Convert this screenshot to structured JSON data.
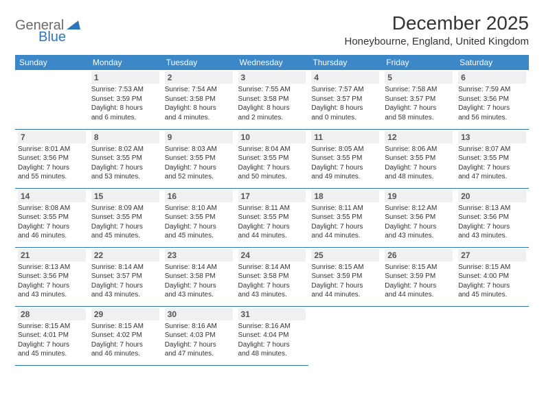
{
  "logo": {
    "word1": "General",
    "word2": "Blue"
  },
  "title": "December 2025",
  "location": "Honeybourne, England, United Kingdom",
  "colors": {
    "header_bg": "#3b87c8",
    "header_text": "#ffffff",
    "border": "#2d77b9",
    "daynum_bg": "#eef0f2",
    "logo_gray": "#6b6b6b",
    "logo_blue": "#2d77b9"
  },
  "weekdays": [
    "Sunday",
    "Monday",
    "Tuesday",
    "Wednesday",
    "Thursday",
    "Friday",
    "Saturday"
  ],
  "weeks": [
    [
      null,
      {
        "n": "1",
        "sr": "Sunrise: 7:53 AM",
        "ss": "Sunset: 3:59 PM",
        "d1": "Daylight: 8 hours",
        "d2": "and 6 minutes."
      },
      {
        "n": "2",
        "sr": "Sunrise: 7:54 AM",
        "ss": "Sunset: 3:58 PM",
        "d1": "Daylight: 8 hours",
        "d2": "and 4 minutes."
      },
      {
        "n": "3",
        "sr": "Sunrise: 7:55 AM",
        "ss": "Sunset: 3:58 PM",
        "d1": "Daylight: 8 hours",
        "d2": "and 2 minutes."
      },
      {
        "n": "4",
        "sr": "Sunrise: 7:57 AM",
        "ss": "Sunset: 3:57 PM",
        "d1": "Daylight: 8 hours",
        "d2": "and 0 minutes."
      },
      {
        "n": "5",
        "sr": "Sunrise: 7:58 AM",
        "ss": "Sunset: 3:57 PM",
        "d1": "Daylight: 7 hours",
        "d2": "and 58 minutes."
      },
      {
        "n": "6",
        "sr": "Sunrise: 7:59 AM",
        "ss": "Sunset: 3:56 PM",
        "d1": "Daylight: 7 hours",
        "d2": "and 56 minutes."
      }
    ],
    [
      {
        "n": "7",
        "sr": "Sunrise: 8:01 AM",
        "ss": "Sunset: 3:56 PM",
        "d1": "Daylight: 7 hours",
        "d2": "and 55 minutes."
      },
      {
        "n": "8",
        "sr": "Sunrise: 8:02 AM",
        "ss": "Sunset: 3:55 PM",
        "d1": "Daylight: 7 hours",
        "d2": "and 53 minutes."
      },
      {
        "n": "9",
        "sr": "Sunrise: 8:03 AM",
        "ss": "Sunset: 3:55 PM",
        "d1": "Daylight: 7 hours",
        "d2": "and 52 minutes."
      },
      {
        "n": "10",
        "sr": "Sunrise: 8:04 AM",
        "ss": "Sunset: 3:55 PM",
        "d1": "Daylight: 7 hours",
        "d2": "and 50 minutes."
      },
      {
        "n": "11",
        "sr": "Sunrise: 8:05 AM",
        "ss": "Sunset: 3:55 PM",
        "d1": "Daylight: 7 hours",
        "d2": "and 49 minutes."
      },
      {
        "n": "12",
        "sr": "Sunrise: 8:06 AM",
        "ss": "Sunset: 3:55 PM",
        "d1": "Daylight: 7 hours",
        "d2": "and 48 minutes."
      },
      {
        "n": "13",
        "sr": "Sunrise: 8:07 AM",
        "ss": "Sunset: 3:55 PM",
        "d1": "Daylight: 7 hours",
        "d2": "and 47 minutes."
      }
    ],
    [
      {
        "n": "14",
        "sr": "Sunrise: 8:08 AM",
        "ss": "Sunset: 3:55 PM",
        "d1": "Daylight: 7 hours",
        "d2": "and 46 minutes."
      },
      {
        "n": "15",
        "sr": "Sunrise: 8:09 AM",
        "ss": "Sunset: 3:55 PM",
        "d1": "Daylight: 7 hours",
        "d2": "and 45 minutes."
      },
      {
        "n": "16",
        "sr": "Sunrise: 8:10 AM",
        "ss": "Sunset: 3:55 PM",
        "d1": "Daylight: 7 hours",
        "d2": "and 45 minutes."
      },
      {
        "n": "17",
        "sr": "Sunrise: 8:11 AM",
        "ss": "Sunset: 3:55 PM",
        "d1": "Daylight: 7 hours",
        "d2": "and 44 minutes."
      },
      {
        "n": "18",
        "sr": "Sunrise: 8:11 AM",
        "ss": "Sunset: 3:55 PM",
        "d1": "Daylight: 7 hours",
        "d2": "and 44 minutes."
      },
      {
        "n": "19",
        "sr": "Sunrise: 8:12 AM",
        "ss": "Sunset: 3:56 PM",
        "d1": "Daylight: 7 hours",
        "d2": "and 43 minutes."
      },
      {
        "n": "20",
        "sr": "Sunrise: 8:13 AM",
        "ss": "Sunset: 3:56 PM",
        "d1": "Daylight: 7 hours",
        "d2": "and 43 minutes."
      }
    ],
    [
      {
        "n": "21",
        "sr": "Sunrise: 8:13 AM",
        "ss": "Sunset: 3:56 PM",
        "d1": "Daylight: 7 hours",
        "d2": "and 43 minutes."
      },
      {
        "n": "22",
        "sr": "Sunrise: 8:14 AM",
        "ss": "Sunset: 3:57 PM",
        "d1": "Daylight: 7 hours",
        "d2": "and 43 minutes."
      },
      {
        "n": "23",
        "sr": "Sunrise: 8:14 AM",
        "ss": "Sunset: 3:58 PM",
        "d1": "Daylight: 7 hours",
        "d2": "and 43 minutes."
      },
      {
        "n": "24",
        "sr": "Sunrise: 8:14 AM",
        "ss": "Sunset: 3:58 PM",
        "d1": "Daylight: 7 hours",
        "d2": "and 43 minutes."
      },
      {
        "n": "25",
        "sr": "Sunrise: 8:15 AM",
        "ss": "Sunset: 3:59 PM",
        "d1": "Daylight: 7 hours",
        "d2": "and 44 minutes."
      },
      {
        "n": "26",
        "sr": "Sunrise: 8:15 AM",
        "ss": "Sunset: 3:59 PM",
        "d1": "Daylight: 7 hours",
        "d2": "and 44 minutes."
      },
      {
        "n": "27",
        "sr": "Sunrise: 8:15 AM",
        "ss": "Sunset: 4:00 PM",
        "d1": "Daylight: 7 hours",
        "d2": "and 45 minutes."
      }
    ],
    [
      {
        "n": "28",
        "sr": "Sunrise: 8:15 AM",
        "ss": "Sunset: 4:01 PM",
        "d1": "Daylight: 7 hours",
        "d2": "and 45 minutes."
      },
      {
        "n": "29",
        "sr": "Sunrise: 8:15 AM",
        "ss": "Sunset: 4:02 PM",
        "d1": "Daylight: 7 hours",
        "d2": "and 46 minutes."
      },
      {
        "n": "30",
        "sr": "Sunrise: 8:16 AM",
        "ss": "Sunset: 4:03 PM",
        "d1": "Daylight: 7 hours",
        "d2": "and 47 minutes."
      },
      {
        "n": "31",
        "sr": "Sunrise: 8:16 AM",
        "ss": "Sunset: 4:04 PM",
        "d1": "Daylight: 7 hours",
        "d2": "and 48 minutes."
      },
      null,
      null,
      null
    ]
  ]
}
